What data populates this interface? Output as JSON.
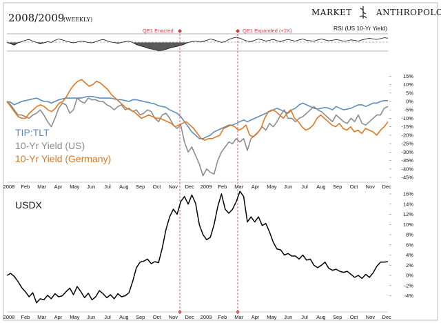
{
  "header": {
    "title": "2008/2009",
    "subtitle": "(WEEKLY)",
    "brand_left": "MARKET",
    "brand_right": "ANTHROPOLOGY"
  },
  "annotations": [
    {
      "label": "QE1 Enacted",
      "at": "Dec 2008"
    },
    {
      "label": "QE1 Expanded (+2X)",
      "at": "Mar 2009"
    }
  ],
  "colors": {
    "tip_tlt": "#5b8cc0",
    "yield_us": "#8c8c8c",
    "yield_germany": "#e0761f",
    "usdx": "#000000",
    "annotation": "#d23c3c"
  },
  "chart_data": [
    {
      "type": "line",
      "title": "RSI (US 10-Yr Yield)",
      "series": [
        {
          "name": "RSI (US 10-Yr Yield)",
          "values": [
            50,
            47,
            44,
            49,
            52,
            55,
            57,
            53,
            50,
            47,
            49,
            52,
            50,
            55,
            58,
            56,
            53,
            51,
            49,
            51,
            53,
            52,
            50,
            49,
            52,
            55,
            57,
            54,
            51,
            50,
            48,
            50,
            52,
            53,
            50,
            45,
            42,
            40,
            37,
            35,
            33,
            31,
            32,
            34,
            37,
            39,
            41,
            43,
            46,
            50,
            52,
            53,
            51,
            52,
            55,
            58,
            56,
            53,
            50,
            52,
            57,
            60,
            62,
            60,
            56,
            53,
            52,
            55,
            58,
            56,
            53,
            55,
            57,
            54,
            52,
            55,
            57,
            55,
            53,
            56,
            58,
            55,
            54,
            53,
            56,
            58,
            56,
            54,
            55,
            57,
            55,
            53,
            54,
            56,
            55,
            53,
            56,
            58,
            60,
            58,
            57,
            59,
            61,
            60
          ]
        }
      ]
    },
    {
      "type": "line",
      "x_labels": [
        "2008",
        "Feb",
        "Mar",
        "Apr",
        "May",
        "Jun",
        "Jul",
        "Aug",
        "Sep",
        "Oct",
        "Nov",
        "Dec",
        "2009",
        "Feb",
        "Mar",
        "Apr",
        "May",
        "Jun",
        "Jul",
        "Aug",
        "Sep",
        "Oct",
        "Nov",
        "Dec"
      ],
      "y_ticks": [
        "15%",
        "10%",
        "5%",
        "0%",
        "-5%",
        "-10%",
        "-15%",
        "-20%",
        "-25%",
        "-30%",
        "-35%",
        "-40%",
        "-45%"
      ],
      "ylim": [
        -45,
        15
      ],
      "legend": "left",
      "series": [
        {
          "name": "TIP:TLT",
          "values": [
            0,
            -0.5,
            -2,
            -1,
            0,
            0.5,
            1,
            1.5,
            2,
            1,
            0,
            0,
            -1,
            0,
            1,
            1.5,
            2,
            2,
            2,
            2,
            2,
            2.5,
            3,
            3,
            2.5,
            2,
            2,
            2,
            2,
            1.5,
            1,
            1,
            0.5,
            0,
            1,
            1,
            0.5,
            0,
            -0.5,
            -1,
            -1.5,
            -2.5,
            -3,
            -3.5,
            -5,
            -6,
            -7,
            -9,
            -12,
            -15,
            -18,
            -20,
            -22,
            -22,
            -21,
            -20,
            -18,
            -17,
            -16,
            -15,
            -14,
            -14,
            -13,
            -12,
            -11,
            -12,
            -11,
            -10,
            -9,
            -8,
            -7,
            -6,
            -5,
            -4,
            -5,
            -6,
            -7,
            -5,
            -4,
            -2,
            -1,
            -2,
            -3,
            -4,
            -4.5,
            -4,
            -3.5,
            -4,
            -5,
            -3,
            -4,
            -5,
            -4.5,
            -4,
            -3,
            -2,
            -2,
            -3,
            -2,
            -1,
            -1,
            0,
            0.5,
            0.5
          ]
        },
        {
          "name": "10-Yr Yield (US)",
          "values": [
            0,
            -2,
            -5,
            -8,
            -8,
            -9,
            -10,
            -8,
            -7,
            -5,
            -8,
            -12,
            -15,
            -10,
            -4,
            -1,
            -2,
            -7,
            -5,
            2,
            0,
            -1,
            2,
            1,
            1,
            0,
            0,
            -2,
            -3,
            -5,
            -3,
            -2,
            -5,
            -4,
            -6,
            -5,
            -8,
            -7,
            -5,
            -6,
            -10,
            -12,
            -8,
            -7,
            -10,
            -14,
            -16,
            -14,
            -24,
            -30,
            -27,
            -32,
            -37,
            -44,
            -40,
            -42,
            -43,
            -35,
            -30,
            -27,
            -24,
            -25,
            -22,
            -24,
            -22,
            -29,
            -22,
            -20,
            -18,
            -15,
            -17,
            -13,
            -15,
            -12,
            -8,
            -5,
            -10,
            -10,
            -12,
            -10,
            -9,
            -7,
            -5,
            -3,
            -5,
            -6,
            -8,
            -10,
            -12,
            -8,
            -10,
            -12,
            -13,
            -10,
            -12,
            -8,
            -13,
            -14,
            -12,
            -10,
            -8,
            -8,
            -4,
            -3
          ]
        },
        {
          "name": "10-Yr Yield (Germany)",
          "values": [
            0,
            -3,
            -6,
            -9,
            -10,
            -10,
            -7,
            -5,
            -3,
            -2,
            -3,
            -5,
            -6,
            -4,
            -1,
            0,
            3,
            7,
            10,
            12,
            13,
            11,
            9,
            10,
            12,
            11,
            9,
            7,
            4,
            2,
            0,
            -2,
            -4,
            -5,
            -6,
            -8,
            -10,
            -9,
            -8,
            -9,
            -10,
            -10,
            -11,
            -12,
            -13,
            -15,
            -14,
            -13,
            -12,
            -14,
            -16,
            -19,
            -22,
            -23,
            -22,
            -22,
            -21,
            -20,
            -16,
            -15,
            -14,
            -15,
            -17,
            -16,
            -14,
            -20,
            -21,
            -19,
            -16,
            -10,
            -6,
            -5,
            -6,
            -8,
            -10,
            -7,
            -5,
            -10,
            -12,
            -15,
            -17,
            -16,
            -14,
            -10,
            -8,
            -10,
            -12,
            -14,
            -15,
            -13,
            -16,
            -17,
            -15,
            -18,
            -17,
            -19,
            -16,
            -17,
            -18,
            -20,
            -17,
            -15,
            -12
          ]
        }
      ]
    },
    {
      "type": "line",
      "title": "USDX",
      "x_labels": [
        "2008",
        "Feb",
        "Mar",
        "Apr",
        "May",
        "Jun",
        "Jul",
        "Aug",
        "Sep",
        "Oct",
        "Nov",
        "Dec",
        "2009",
        "Feb",
        "Mar",
        "Apr",
        "May",
        "Jun",
        "Jul",
        "Aug",
        "Sep",
        "Oct",
        "Nov",
        "Dec"
      ],
      "y_ticks": [
        "16%",
        "14%",
        "12%",
        "10%",
        "8%",
        "6%",
        "4%",
        "2%",
        "0%",
        "-2%",
        "-4%"
      ],
      "ylim": [
        -4,
        16
      ],
      "series": [
        {
          "name": "USDX",
          "values": [
            0,
            0.4,
            -0.2,
            -1.2,
            -2.4,
            -3.2,
            -4.2,
            -3.4,
            -5.4,
            -4.6,
            -4.8,
            -3.9,
            -4.6,
            -3.6,
            -4.2,
            -4.0,
            -3.2,
            -2.5,
            -3.8,
            -2.2,
            -3.2,
            -4.4,
            -3.5,
            -4.8,
            -4.2,
            -3.0,
            -3.6,
            -4.4,
            -3.8,
            -4.6,
            -3.6,
            -4.2,
            -4.0,
            -3.4,
            -1.2,
            1.5,
            2.6,
            2.8,
            3.2,
            2.3,
            2.7,
            2.5,
            5.4,
            9.0,
            11.5,
            13.0,
            12.0,
            14.5,
            15.5,
            14.0,
            15.8,
            14.2,
            10.0,
            8.0,
            7.0,
            7.5,
            10.0,
            13.5,
            16.0,
            13.0,
            12.2,
            13.0,
            14.5,
            16.5,
            15.5,
            10.5,
            11.5,
            10.5,
            11.5,
            9.8,
            10.2,
            8.5,
            6.5,
            5.2,
            5.0,
            4.0,
            4.3,
            3.8,
            3.8,
            3.2,
            4.0,
            3.0,
            3.2,
            2.0,
            1.5,
            2.0,
            2.6,
            1.4,
            1.0,
            1.2,
            0.8,
            0.6,
            0.8,
            0.2,
            -0.4,
            0.0,
            -0.6,
            0.2,
            -0.4,
            0.5,
            1.8,
            2.6,
            2.6,
            2.7
          ]
        }
      ]
    }
  ]
}
